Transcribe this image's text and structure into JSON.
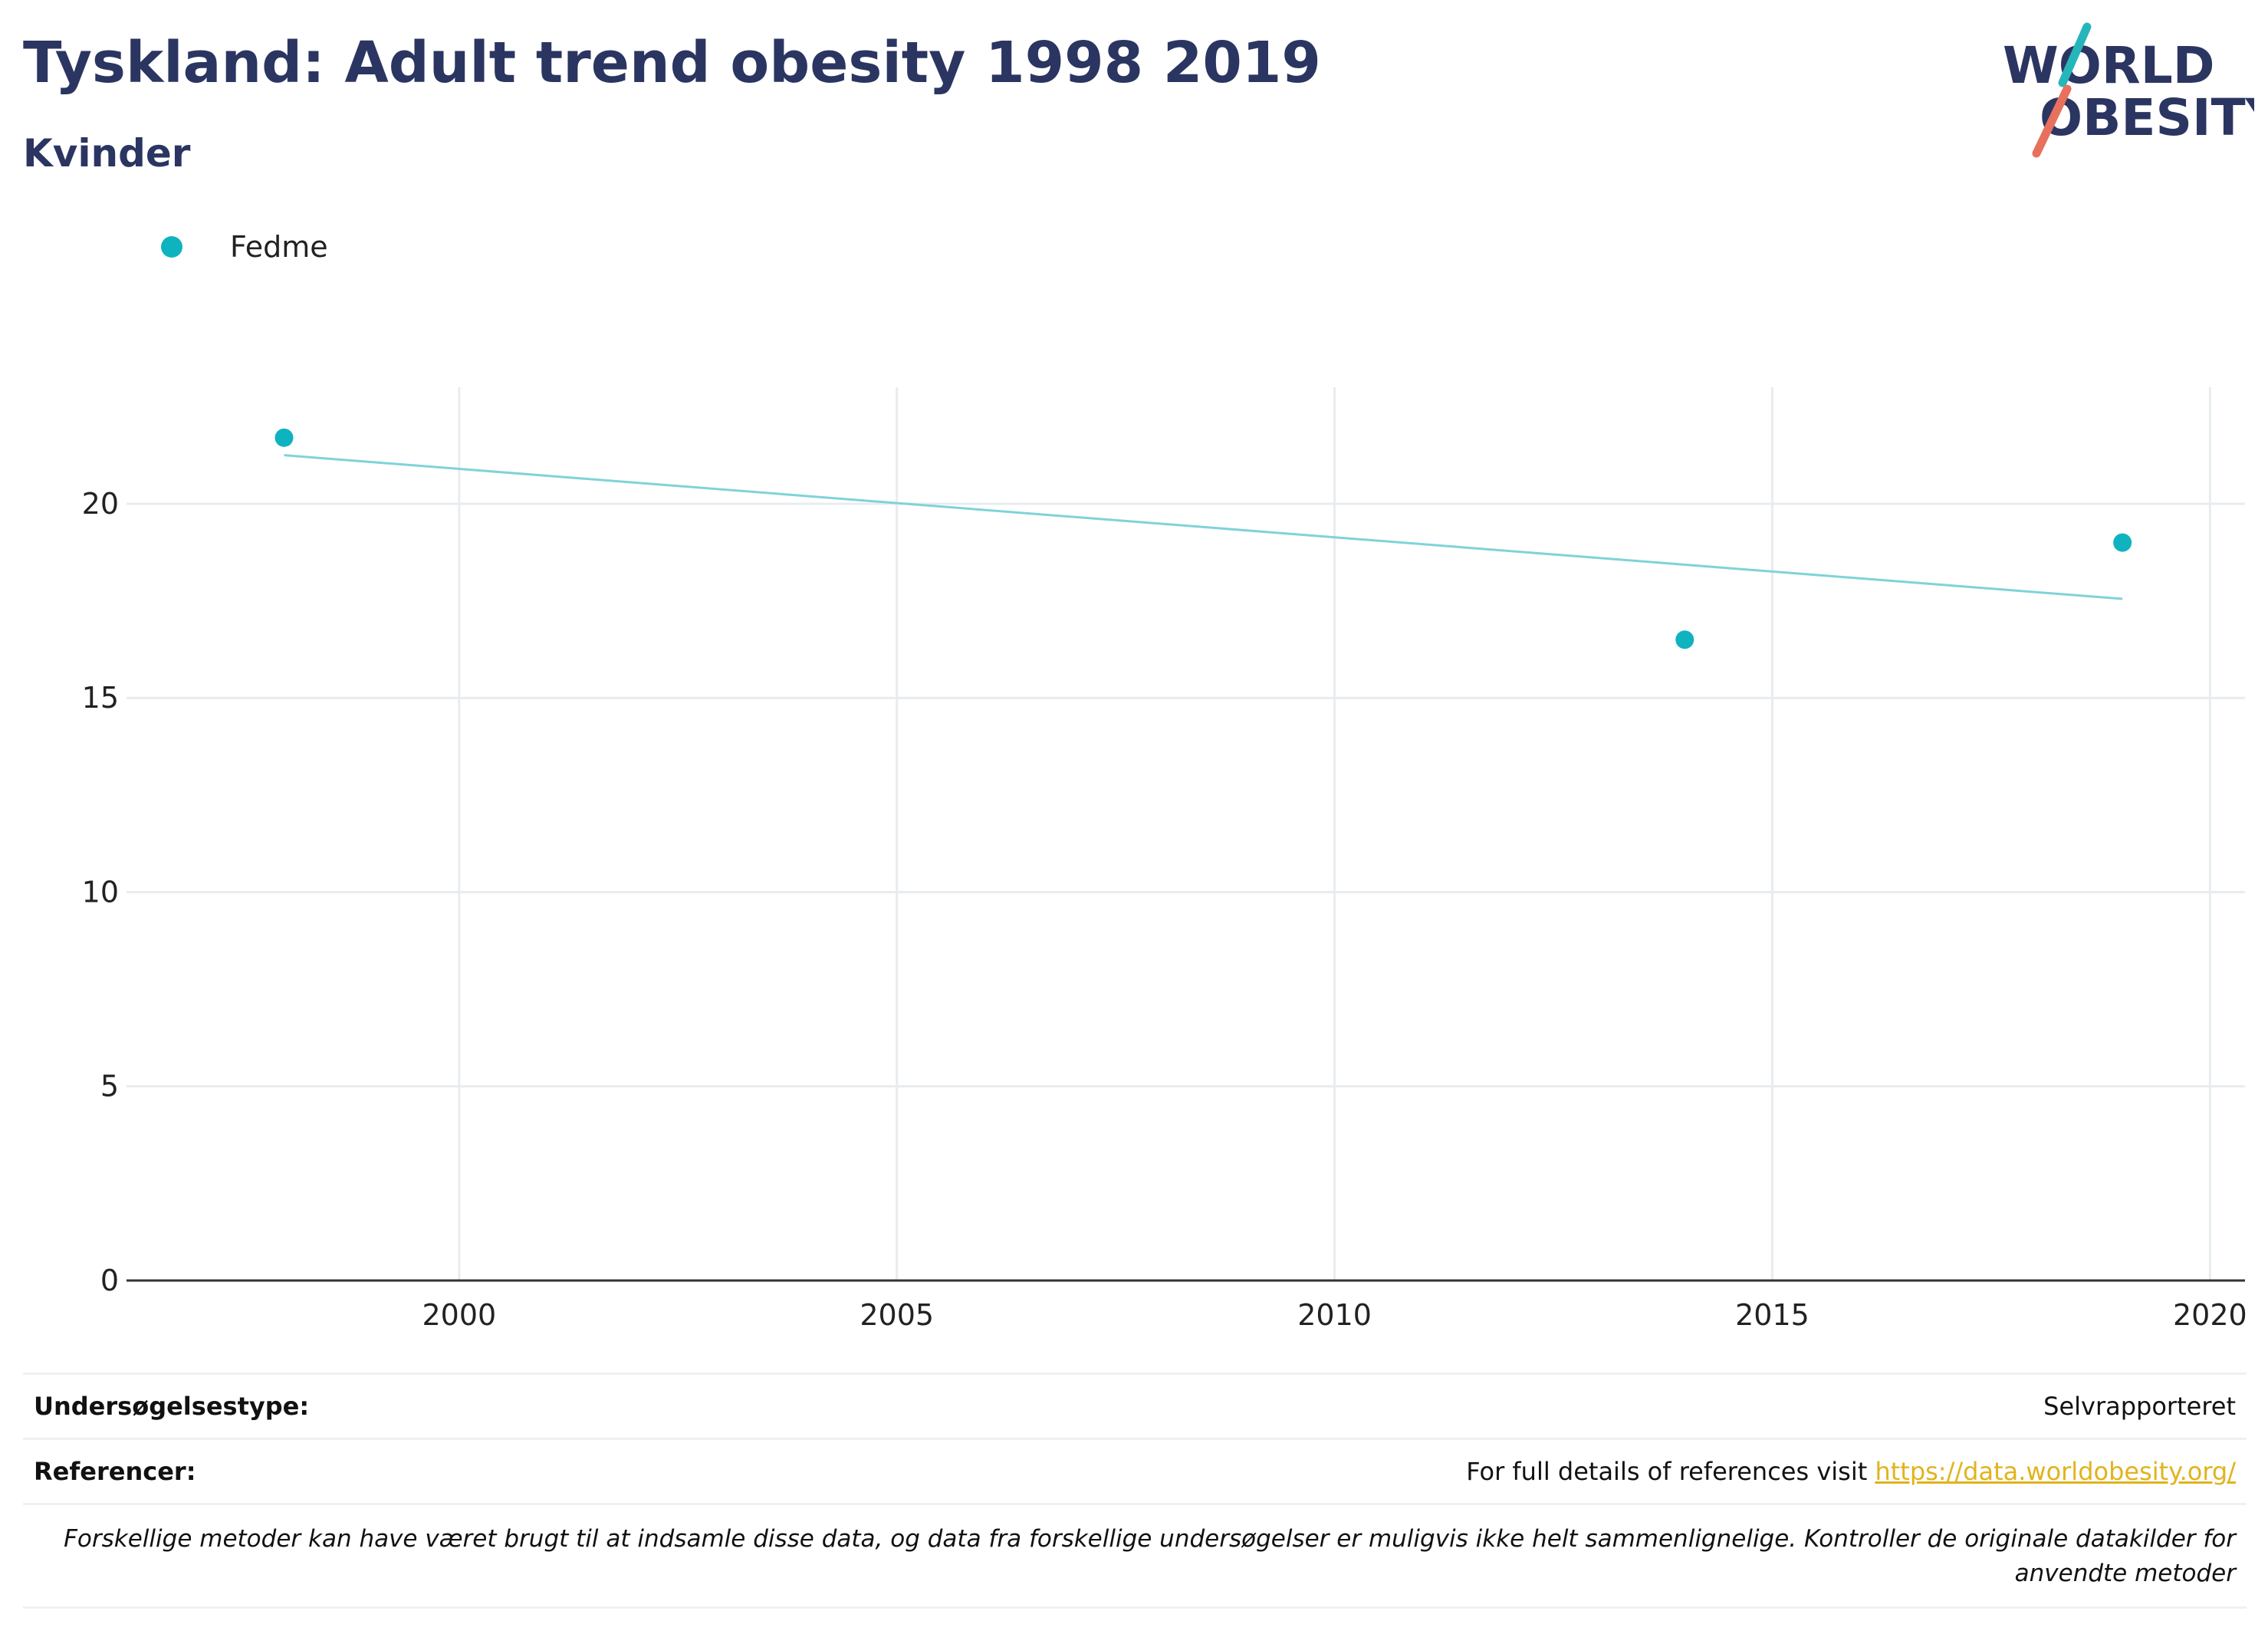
{
  "header": {
    "title": "Tyskland: Adult trend obesity 1998 2019",
    "subtitle": "Kvinder"
  },
  "logo": {
    "line1": "WORLD",
    "line2": "OBESITY",
    "colors": {
      "text": "#2b3561",
      "teal": "#26b6ba",
      "coral": "#e8705d"
    }
  },
  "chart_data": {
    "type": "scatter",
    "title": "",
    "xlabel": "",
    "ylabel": "",
    "xlim": [
      1996.2,
      2020.4
    ],
    "ylim": [
      0,
      23
    ],
    "xticks": [
      2000,
      2005,
      2010,
      2015,
      2020
    ],
    "yticks": [
      0,
      5,
      10,
      15,
      20
    ],
    "grid": true,
    "legend_position": "top-left",
    "series": [
      {
        "name": "Fedme",
        "color": "#0fb3c0",
        "x": [
          1998,
          2014,
          2019
        ],
        "y": [
          21.7,
          16.5,
          19.0
        ]
      }
    ],
    "trendline": {
      "color": "#7fd3d8",
      "x": [
        1998,
        2019
      ],
      "y": [
        21.25,
        17.55
      ]
    }
  },
  "footer": {
    "survey_type_label": "Undersøgelsestype:",
    "survey_type_value": "Selvrapporteret",
    "references_label": "Referencer:",
    "references_text": "For full details of references visit ",
    "references_link": "https://data.worldobesity.org/",
    "note": "Forskellige metoder kan have været brugt til at indsamle disse data, og data fra forskellige undersøgelser er muligvis ikke helt sammenlignelige. Kontroller de originale datakilder for anvendte metoder"
  }
}
